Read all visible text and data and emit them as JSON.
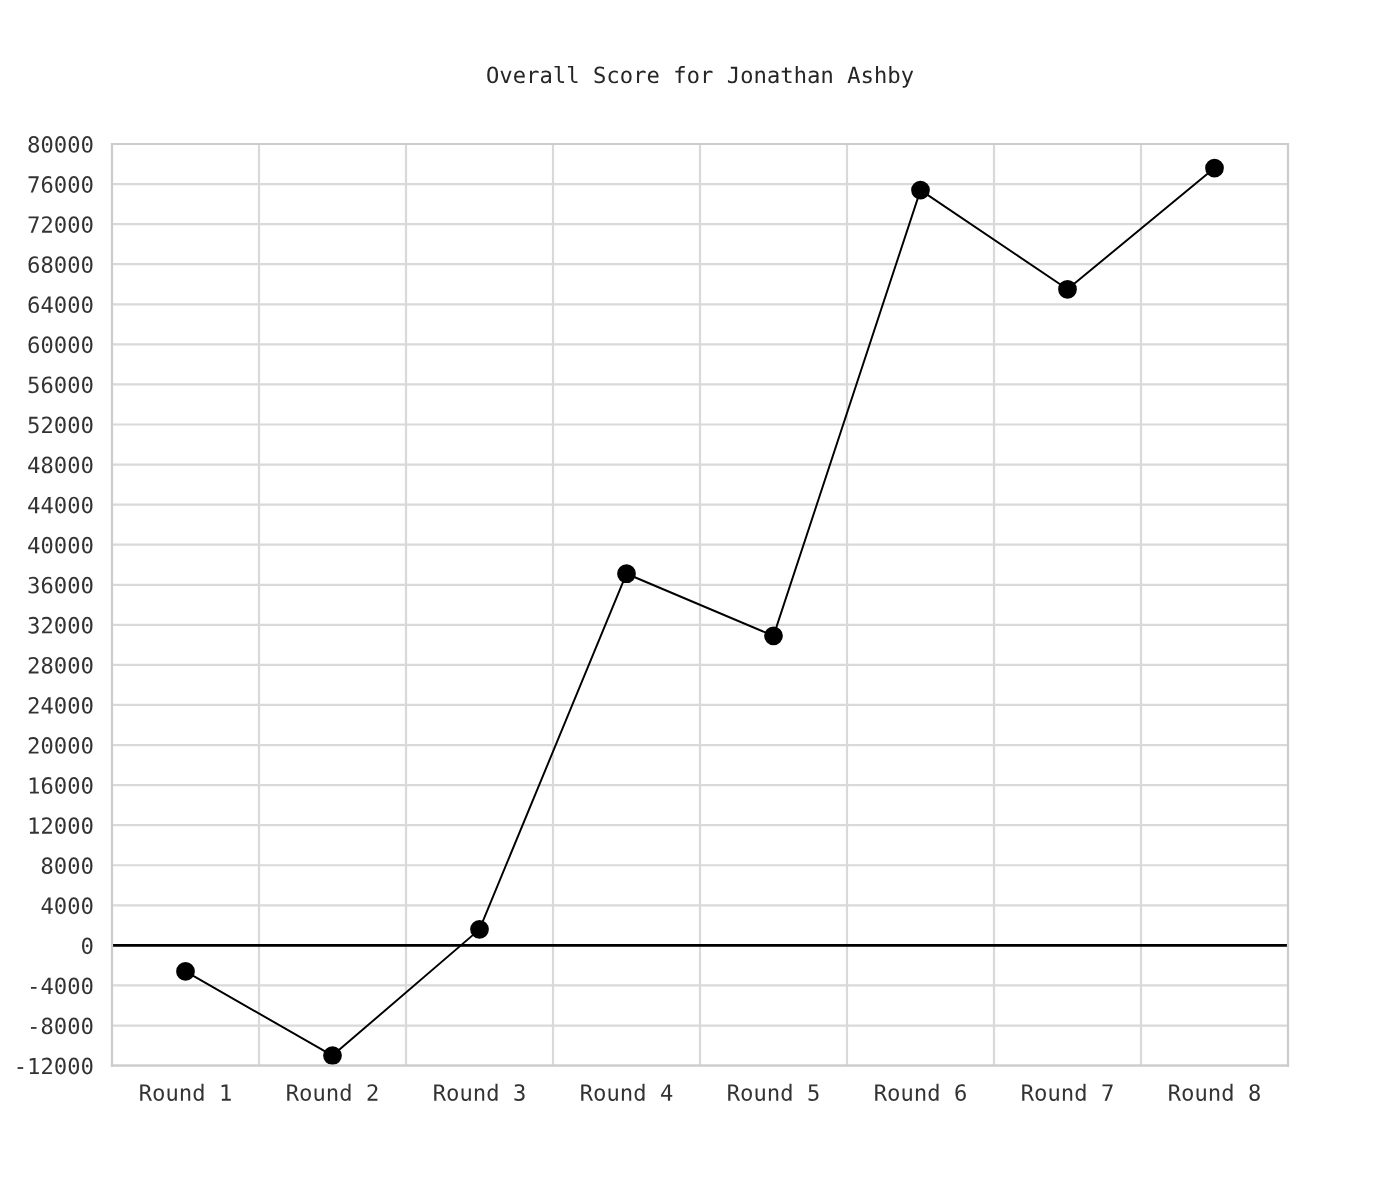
{
  "chart_data": {
    "type": "line",
    "title": "Overall Score for Jonathan Ashby",
    "categories": [
      "Round 1",
      "Round 2",
      "Round 3",
      "Round 4",
      "Round 5",
      "Round 6",
      "Round 7",
      "Round 8"
    ],
    "series": [
      {
        "color": "#000000",
        "values": [
          -2600,
          -11000,
          1600,
          37100,
          30900,
          75400,
          65500,
          77600
        ]
      }
    ],
    "ylim": [
      -12000,
      80000
    ],
    "yticks": [
      -12000,
      -8000,
      -4000,
      0,
      4000,
      8000,
      12000,
      16000,
      20000,
      24000,
      28000,
      32000,
      36000,
      40000,
      44000,
      48000,
      52000,
      56000,
      60000,
      64000,
      68000,
      72000,
      76000,
      80000
    ],
    "ref_lines": [
      {
        "axis": "y",
        "value": 0,
        "color": "#000000"
      }
    ],
    "grid": true,
    "marker": "circle",
    "line_style": "solid"
  }
}
